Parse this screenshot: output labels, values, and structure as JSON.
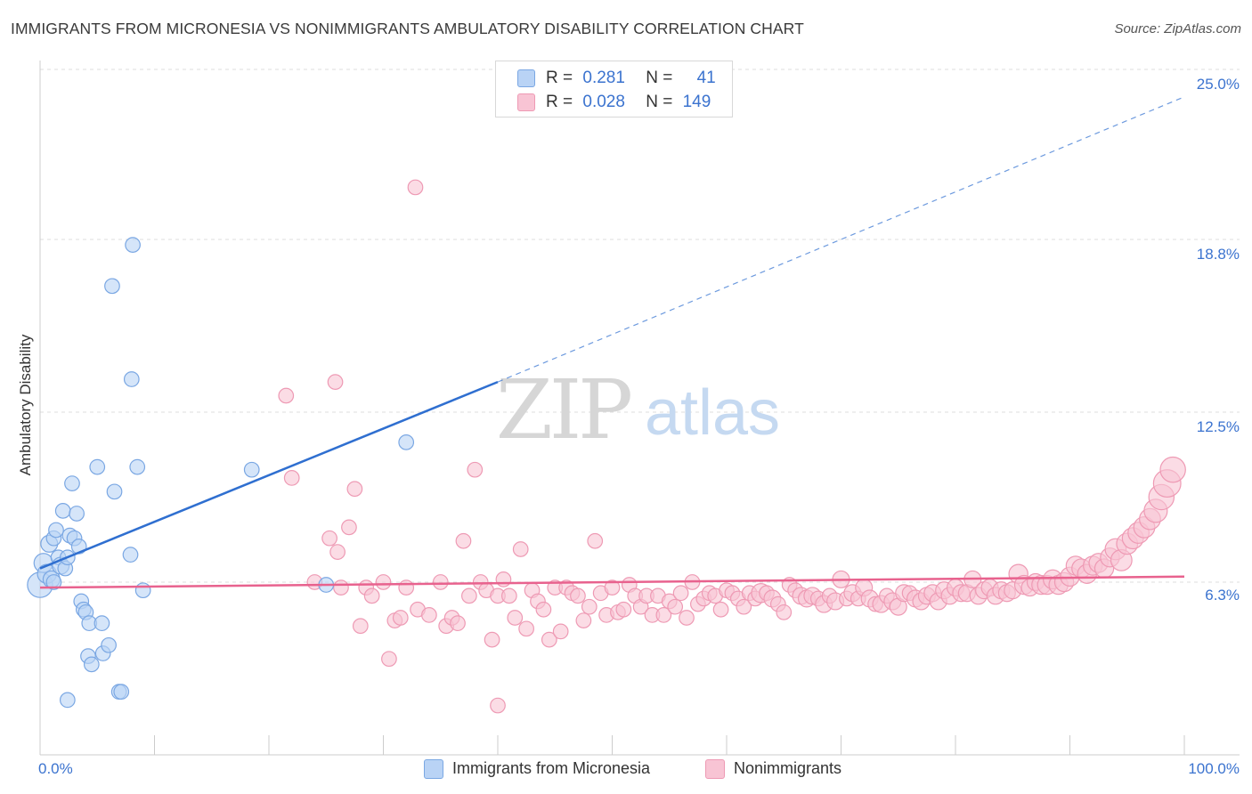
{
  "title": "IMMIGRANTS FROM MICRONESIA VS NONIMMIGRANTS AMBULATORY DISABILITY CORRELATION CHART",
  "source": "Source: ZipAtlas.com",
  "watermark": {
    "zip": "ZIP",
    "atlas": "atlas"
  },
  "legend_top": [
    {
      "r_label": "R =",
      "r_value": "0.281",
      "n_label": "N =",
      "n_value": "41"
    },
    {
      "r_label": "R =",
      "r_value": "0.028",
      "n_label": "N =",
      "n_value": "149"
    }
  ],
  "colors": {
    "blue_fill": "#b9d3f5",
    "blue_stroke": "#7aa7e3",
    "blue_line": "#2f6fd0",
    "pink_fill": "#f8c4d4",
    "pink_stroke": "#ee9ab4",
    "pink_line": "#e8628e",
    "axis_text": "#3b73cf",
    "grid": "#dddddd"
  },
  "chart_data": {
    "type": "scatter",
    "ylabel": "Ambulatory Disability",
    "xlim": [
      0,
      100
    ],
    "ylim": [
      0,
      25.0
    ],
    "x_tick_labels": [
      "0.0%",
      "100.0%"
    ],
    "y_ticks": [
      6.3,
      12.5,
      18.8,
      25.0
    ],
    "y_tick_labels": [
      "6.3%",
      "12.5%",
      "18.8%",
      "25.0%"
    ],
    "grid": true,
    "series": [
      {
        "name": "Immigrants from Micronesia",
        "color": "#b9d3f5",
        "trend": {
          "x": [
            0,
            40
          ],
          "y": [
            6.8,
            13.6
          ],
          "extend_to": [
            100,
            24.0
          ]
        },
        "points": [
          [
            0.0,
            6.2,
            12
          ],
          [
            0.3,
            7.0,
            9
          ],
          [
            0.6,
            6.6,
            9
          ],
          [
            0.8,
            7.7,
            8
          ],
          [
            1.0,
            6.4,
            8
          ],
          [
            1.2,
            7.9,
            7
          ],
          [
            1.4,
            8.2,
            7
          ],
          [
            1.6,
            7.2,
            7
          ],
          [
            1.8,
            6.9,
            8
          ],
          [
            2.0,
            8.9,
            7
          ],
          [
            2.2,
            6.8,
            7
          ],
          [
            2.4,
            7.2,
            7
          ],
          [
            2.6,
            8.0,
            7
          ],
          [
            2.8,
            9.9,
            7
          ],
          [
            3.0,
            7.9,
            7
          ],
          [
            3.2,
            8.8,
            7
          ],
          [
            3.4,
            7.6,
            7
          ],
          [
            3.6,
            5.6,
            7
          ],
          [
            3.8,
            5.3,
            7
          ],
          [
            4.0,
            5.2,
            7
          ],
          [
            4.2,
            3.6,
            7
          ],
          [
            4.3,
            4.8,
            7
          ],
          [
            4.5,
            3.3,
            7
          ],
          [
            5.0,
            10.5,
            7
          ],
          [
            5.4,
            4.8,
            7
          ],
          [
            5.5,
            3.7,
            7
          ],
          [
            6.0,
            4.0,
            7
          ],
          [
            6.3,
            17.1,
            7
          ],
          [
            6.5,
            9.6,
            7
          ],
          [
            6.9,
            2.3,
            7
          ],
          [
            7.1,
            2.3,
            7
          ],
          [
            7.9,
            7.3,
            7
          ],
          [
            8.0,
            13.7,
            7
          ],
          [
            8.1,
            18.6,
            7
          ],
          [
            8.5,
            10.5,
            7
          ],
          [
            9.0,
            6.0,
            7
          ],
          [
            18.5,
            10.4,
            7
          ],
          [
            25.0,
            6.2,
            7
          ],
          [
            2.4,
            2.0,
            7
          ],
          [
            1.2,
            6.3,
            7
          ],
          [
            32.0,
            11.4,
            7
          ]
        ]
      },
      {
        "name": "Nonimmigrants",
        "color": "#f8c4d4",
        "trend": {
          "x": [
            0,
            100
          ],
          "y": [
            6.1,
            6.5
          ]
        },
        "points": [
          [
            21.5,
            13.1,
            7
          ],
          [
            22.0,
            10.1,
            7
          ],
          [
            24.0,
            6.3,
            7
          ],
          [
            25.3,
            7.9,
            7
          ],
          [
            25.8,
            13.6,
            7
          ],
          [
            26.0,
            7.4,
            7
          ],
          [
            26.3,
            6.1,
            7
          ],
          [
            27.0,
            8.3,
            7
          ],
          [
            27.5,
            9.7,
            7
          ],
          [
            28.0,
            4.7,
            7
          ],
          [
            28.5,
            6.1,
            7
          ],
          [
            29.0,
            5.8,
            7
          ],
          [
            30.0,
            6.3,
            7
          ],
          [
            30.5,
            3.5,
            7
          ],
          [
            31.0,
            4.9,
            7
          ],
          [
            31.5,
            5.0,
            7
          ],
          [
            32.0,
            6.1,
            7
          ],
          [
            32.8,
            20.7,
            7
          ],
          [
            33.0,
            5.3,
            7
          ],
          [
            34.0,
            5.1,
            7
          ],
          [
            35.0,
            6.3,
            7
          ],
          [
            35.5,
            4.7,
            7
          ],
          [
            36.0,
            5.0,
            7
          ],
          [
            36.5,
            4.8,
            7
          ],
          [
            37.0,
            7.8,
            7
          ],
          [
            37.5,
            5.8,
            7
          ],
          [
            38.0,
            10.4,
            7
          ],
          [
            38.5,
            6.3,
            7
          ],
          [
            39.0,
            6.0,
            7
          ],
          [
            39.5,
            4.2,
            7
          ],
          [
            40.0,
            5.8,
            7
          ],
          [
            40.0,
            1.8,
            7
          ],
          [
            40.5,
            6.4,
            7
          ],
          [
            41.0,
            5.8,
            7
          ],
          [
            41.5,
            5.0,
            7
          ],
          [
            42.0,
            7.5,
            7
          ],
          [
            42.5,
            4.6,
            7
          ],
          [
            43.0,
            6.0,
            7
          ],
          [
            43.5,
            5.6,
            7
          ],
          [
            44.0,
            5.3,
            7
          ],
          [
            44.5,
            4.2,
            7
          ],
          [
            45.0,
            6.1,
            7
          ],
          [
            45.5,
            4.5,
            7
          ],
          [
            46.0,
            6.1,
            7
          ],
          [
            46.5,
            5.9,
            7
          ],
          [
            47.0,
            5.8,
            7
          ],
          [
            47.5,
            4.9,
            7
          ],
          [
            48.0,
            5.4,
            7
          ],
          [
            48.5,
            7.8,
            7
          ],
          [
            49.0,
            5.9,
            7
          ],
          [
            49.5,
            5.1,
            7
          ],
          [
            50.0,
            6.1,
            7
          ],
          [
            50.5,
            5.2,
            7
          ],
          [
            51.0,
            5.3,
            7
          ],
          [
            51.5,
            6.2,
            7
          ],
          [
            52.0,
            5.8,
            7
          ],
          [
            52.5,
            5.4,
            7
          ],
          [
            53.0,
            5.8,
            7
          ],
          [
            53.5,
            5.1,
            7
          ],
          [
            54.0,
            5.8,
            7
          ],
          [
            54.5,
            5.1,
            7
          ],
          [
            55.0,
            5.6,
            7
          ],
          [
            55.5,
            5.4,
            7
          ],
          [
            56.0,
            5.9,
            7
          ],
          [
            56.5,
            5.0,
            7
          ],
          [
            57.0,
            6.3,
            7
          ],
          [
            57.5,
            5.5,
            7
          ],
          [
            58.0,
            5.7,
            7
          ],
          [
            58.5,
            5.9,
            7
          ],
          [
            59.0,
            5.8,
            7
          ],
          [
            59.5,
            5.3,
            7
          ],
          [
            60.0,
            6.0,
            7
          ],
          [
            60.5,
            5.9,
            7
          ],
          [
            61.0,
            5.7,
            7
          ],
          [
            61.5,
            5.4,
            7
          ],
          [
            62.0,
            5.9,
            7
          ],
          [
            62.5,
            5.7,
            7
          ],
          [
            63.0,
            5.9,
            9
          ],
          [
            63.5,
            5.9,
            7
          ],
          [
            64.0,
            5.7,
            8
          ],
          [
            64.5,
            5.5,
            7
          ],
          [
            65.0,
            5.2,
            7
          ],
          [
            65.5,
            6.2,
            7
          ],
          [
            66.0,
            6.0,
            7
          ],
          [
            66.5,
            5.8,
            8
          ],
          [
            67.0,
            5.7,
            8
          ],
          [
            67.5,
            5.8,
            8
          ],
          [
            68.0,
            5.7,
            7
          ],
          [
            68.5,
            5.5,
            8
          ],
          [
            69.0,
            5.8,
            7
          ],
          [
            69.5,
            5.6,
            8
          ],
          [
            70.0,
            6.4,
            8
          ],
          [
            70.5,
            5.7,
            7
          ],
          [
            71.0,
            5.9,
            8
          ],
          [
            71.5,
            5.7,
            7
          ],
          [
            72.0,
            6.1,
            8
          ],
          [
            72.5,
            5.7,
            8
          ],
          [
            73.0,
            5.5,
            7
          ],
          [
            73.5,
            5.5,
            8
          ],
          [
            74.0,
            5.8,
            7
          ],
          [
            74.5,
            5.6,
            8
          ],
          [
            75.0,
            5.4,
            8
          ],
          [
            75.5,
            5.9,
            8
          ],
          [
            76.0,
            5.9,
            7
          ],
          [
            76.5,
            5.7,
            8
          ],
          [
            77.0,
            5.6,
            8
          ],
          [
            77.5,
            5.8,
            8
          ],
          [
            78.0,
            5.9,
            8
          ],
          [
            78.5,
            5.6,
            8
          ],
          [
            79.0,
            6.0,
            8
          ],
          [
            79.5,
            5.8,
            8
          ],
          [
            80.0,
            6.1,
            8
          ],
          [
            80.5,
            5.9,
            8
          ],
          [
            81.0,
            5.9,
            8
          ],
          [
            81.5,
            6.4,
            8
          ],
          [
            82.0,
            5.8,
            8
          ],
          [
            82.5,
            6.0,
            8
          ],
          [
            83.0,
            6.1,
            8
          ],
          [
            83.5,
            5.8,
            8
          ],
          [
            84.0,
            6.0,
            8
          ],
          [
            84.5,
            5.9,
            8
          ],
          [
            85.0,
            6.0,
            8
          ],
          [
            85.5,
            6.6,
            9
          ],
          [
            86.0,
            6.2,
            9
          ],
          [
            86.5,
            6.1,
            8
          ],
          [
            87.0,
            6.3,
            8
          ],
          [
            87.5,
            6.2,
            9
          ],
          [
            88.0,
            6.2,
            9
          ],
          [
            88.5,
            6.4,
            9
          ],
          [
            89.0,
            6.2,
            9
          ],
          [
            89.5,
            6.3,
            9
          ],
          [
            90.0,
            6.5,
            9
          ],
          [
            90.5,
            6.9,
            9
          ],
          [
            91.0,
            6.8,
            9
          ],
          [
            91.5,
            6.6,
            9
          ],
          [
            92.0,
            6.9,
            9
          ],
          [
            92.5,
            7.0,
            9
          ],
          [
            93.0,
            6.8,
            9
          ],
          [
            93.5,
            7.2,
            9
          ],
          [
            94.0,
            7.5,
            10
          ],
          [
            94.5,
            7.1,
            10
          ],
          [
            95.0,
            7.7,
            10
          ],
          [
            95.5,
            7.9,
            10
          ],
          [
            96.0,
            8.1,
            10
          ],
          [
            96.5,
            8.3,
            10
          ],
          [
            97.0,
            8.6,
            10
          ],
          [
            97.5,
            8.9,
            11
          ],
          [
            98.0,
            9.4,
            12
          ],
          [
            98.5,
            9.9,
            13
          ],
          [
            99.0,
            10.4,
            12
          ]
        ]
      }
    ]
  },
  "legend_bottom": [
    "Immigrants from Micronesia",
    "Nonimmigrants"
  ]
}
